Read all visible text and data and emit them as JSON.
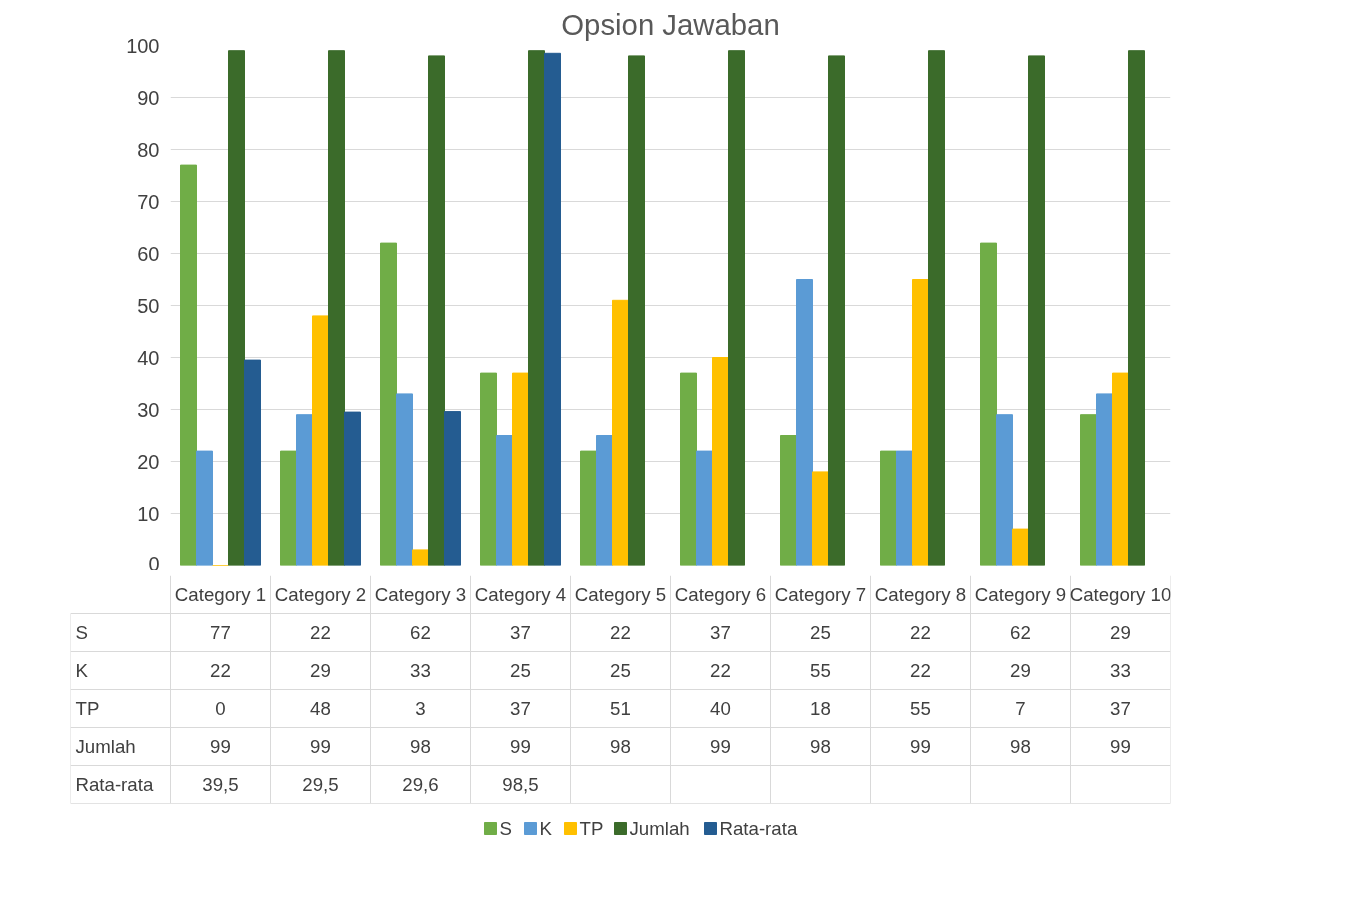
{
  "chart_data": {
    "type": "bar",
    "title": "Opsion Jawaban",
    "categories": [
      "Category 1",
      "Category 2",
      "Category 3",
      "Category 4",
      "Category 5",
      "Category 6",
      "Category 7",
      "Category 8",
      "Category 9",
      "Category 10"
    ],
    "series": [
      {
        "name": "S",
        "color": "#70ad47",
        "values": [
          77,
          22,
          62,
          37,
          22,
          37,
          25,
          22,
          62,
          29
        ]
      },
      {
        "name": "K",
        "color": "#5b9bd5",
        "values": [
          22,
          29,
          33,
          25,
          25,
          22,
          55,
          22,
          29,
          33
        ]
      },
      {
        "name": "TP",
        "color": "#ffc000",
        "values": [
          0,
          48,
          3,
          37,
          51,
          40,
          18,
          55,
          7,
          37
        ]
      },
      {
        "name": "Jumlah",
        "color": "#3b6b2a",
        "values": [
          99,
          99,
          98,
          99,
          98,
          99,
          98,
          99,
          98,
          99
        ]
      },
      {
        "name": "Rata-rata",
        "color": "#245c91",
        "values": [
          39.5,
          29.5,
          29.6,
          98.5,
          null,
          null,
          null,
          null,
          null,
          null
        ],
        "value_labels": [
          "39,5",
          "29,5",
          "29,6",
          "98,5",
          null,
          null,
          null,
          null,
          null,
          null
        ]
      }
    ],
    "ylim": [
      0,
      100
    ],
    "yticks": [
      0,
      10,
      20,
      30,
      40,
      50,
      60,
      70,
      80,
      90,
      100
    ],
    "grid": "y",
    "legend": "bottom",
    "data_labels": true
  }
}
